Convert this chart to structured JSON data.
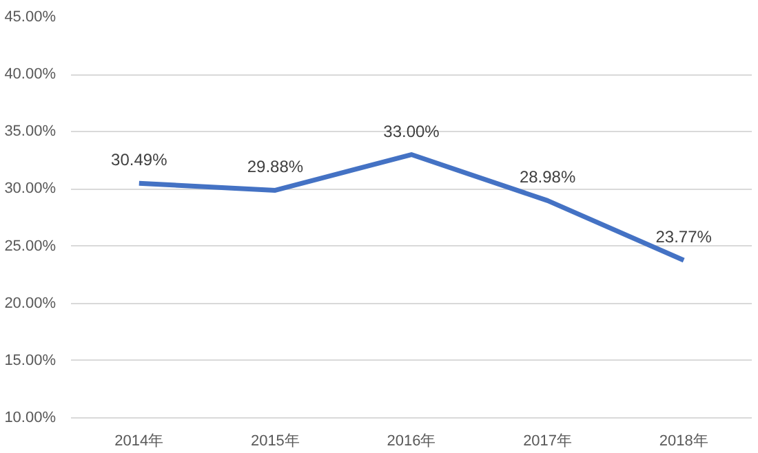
{
  "chart_data": {
    "type": "line",
    "categories": [
      "2014年",
      "2015年",
      "2016年",
      "2017年",
      "2018年"
    ],
    "series": [
      {
        "color": "#4472c4",
        "values": [
          30.49,
          29.88,
          33.0,
          28.98,
          23.77
        ]
      }
    ],
    "value_labels": [
      "30.49%",
      "29.88%",
      "33.00%",
      "28.98%",
      "23.77%"
    ],
    "ylim": [
      10,
      45
    ],
    "yticks": [
      {
        "value": 10,
        "label": "10.00%"
      },
      {
        "value": 15,
        "label": "15.00%"
      },
      {
        "value": 20,
        "label": "20.00%"
      },
      {
        "value": 25,
        "label": "25.00%"
      },
      {
        "value": 30,
        "label": "30.00%"
      },
      {
        "value": 35,
        "label": "35.00%"
      },
      {
        "value": 40,
        "label": "40.00%"
      },
      {
        "value": 45,
        "label": "45.00%"
      }
    ],
    "grid": "y",
    "marker": "none",
    "line_style": "solid"
  }
}
